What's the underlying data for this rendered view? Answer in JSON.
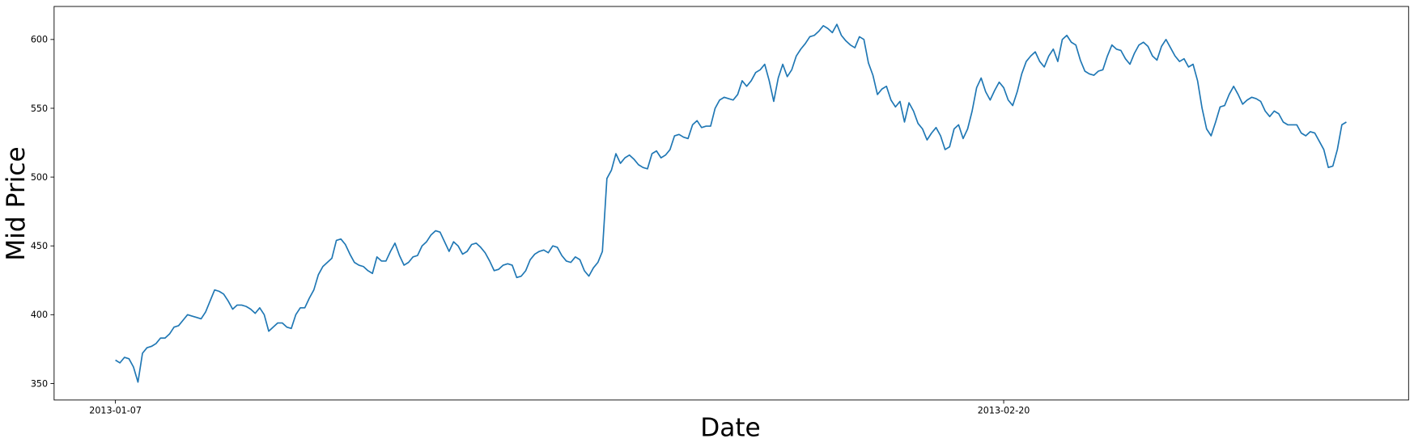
{
  "chart_data": {
    "type": "line",
    "xlabel": "Date",
    "ylabel": "Mid Price",
    "color": "#1f77b4",
    "values": [
      367,
      365,
      369,
      368,
      362,
      351,
      372,
      376,
      377,
      379,
      383,
      383,
      386,
      391,
      392,
      396,
      400,
      399,
      398,
      397,
      402,
      410,
      418,
      417,
      415,
      410,
      404,
      407,
      407,
      406,
      404,
      401,
      405,
      400,
      388,
      391,
      394,
      394,
      391,
      390,
      400,
      405,
      405,
      412,
      418,
      429,
      435,
      438,
      441,
      454,
      455,
      451,
      444,
      438,
      436,
      435,
      432,
      430,
      442,
      439,
      439,
      446,
      452,
      443,
      436,
      438,
      442,
      443,
      450,
      453,
      458,
      461,
      460,
      453,
      446,
      453,
      450,
      444,
      446,
      451,
      452,
      449,
      445,
      439,
      432,
      433,
      436,
      437,
      436,
      427,
      428,
      432,
      440,
      444,
      446,
      447,
      445,
      450,
      449,
      443,
      439,
      438,
      442,
      440,
      432,
      428,
      434,
      438,
      446,
      499,
      505,
      517,
      510,
      514,
      516,
      513,
      509,
      507,
      506,
      517,
      519,
      514,
      516,
      520,
      530,
      531,
      529,
      528,
      538,
      541,
      536,
      537,
      537,
      550,
      556,
      558,
      557,
      556,
      560,
      570,
      566,
      570,
      576,
      578,
      582,
      570,
      555,
      572,
      582,
      573,
      578,
      588,
      593,
      597,
      602,
      603,
      606,
      610,
      608,
      605,
      611,
      603,
      599,
      596,
      594,
      602,
      600,
      583,
      574,
      560,
      564,
      566,
      556,
      551,
      555,
      540,
      554,
      548,
      539,
      535,
      527,
      532,
      536,
      530,
      520,
      522,
      535,
      538,
      528,
      535,
      548,
      565,
      572,
      562,
      556,
      563,
      569,
      565,
      556,
      552,
      562,
      575,
      584,
      588,
      591,
      584,
      580,
      588,
      593,
      584,
      600,
      603,
      598,
      596,
      585,
      577,
      575,
      574,
      577,
      578,
      588,
      596,
      593,
      592,
      586,
      582,
      590,
      596,
      598,
      595,
      588,
      585,
      595,
      600,
      594,
      588,
      584,
      586,
      580,
      582,
      570,
      550,
      535,
      530,
      540,
      551,
      552,
      560,
      566,
      560,
      553,
      556,
      558,
      557,
      555,
      548,
      544,
      548,
      546,
      540,
      538,
      538,
      538,
      532,
      530,
      533,
      532,
      526,
      520,
      507,
      508,
      520,
      538,
      540
    ],
    "xlim": [
      -13.6,
      286.8
    ],
    "xticks": [
      {
        "value": 0,
        "label": "2013-01-07"
      },
      {
        "value": 197,
        "label": "2013-02-20"
      }
    ],
    "ylim": [
      338,
      624
    ],
    "yticks": [
      350,
      400,
      450,
      500,
      550,
      600
    ]
  }
}
